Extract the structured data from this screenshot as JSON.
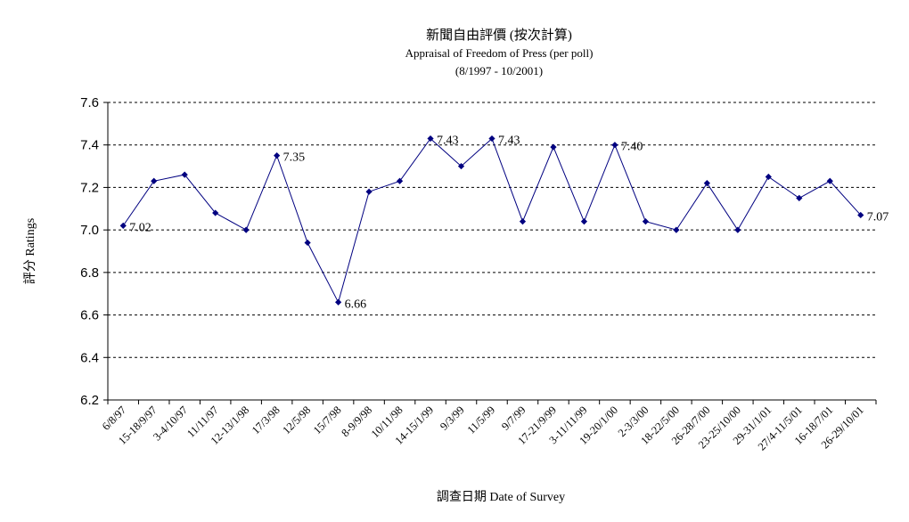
{
  "chart_data": {
    "type": "line",
    "title": "新聞自由評價 (按次計算)",
    "subtitle": "Appraisal of Freedom of Press (per poll)",
    "subtitle2": "(8/1997 - 10/2001)",
    "xlabel": "調查日期 Date of Survey",
    "ylabel": "評分 Ratings",
    "ylim": [
      6.2,
      7.6
    ],
    "yticks": [
      "6.2",
      "6.4",
      "6.6",
      "6.8",
      "7.0",
      "7.2",
      "7.4",
      "7.6"
    ],
    "grid": true,
    "line_color": "#000080",
    "categories": [
      "6/8/97",
      "15-18/9/97",
      "3-4/10/97",
      "11/11/97",
      "12-13/1/98",
      "17/3/98",
      "12/5/98",
      "15/7/98",
      "8-9/9/98",
      "10/11/98",
      "14-15/1/99",
      "9/3/99",
      "11/5/99",
      "9/7/99",
      "17-21/9/99",
      "3-11/11/99",
      "19-20/1/00",
      "2-3/3/00",
      "18-22/5/00",
      "26-28/7/00",
      "23-25/10/00",
      "29-31/1/01",
      "27/4-11/5/01",
      "16-18/7/01",
      "26-29/10/01"
    ],
    "values": [
      7.02,
      7.23,
      7.26,
      7.08,
      7.0,
      7.35,
      6.94,
      6.66,
      7.18,
      7.23,
      7.43,
      7.3,
      7.43,
      7.04,
      7.39,
      7.04,
      7.4,
      7.04,
      7.0,
      7.22,
      7.0,
      7.25,
      7.15,
      7.23,
      7.07
    ],
    "data_labels": [
      {
        "index": 0,
        "text": "7.02"
      },
      {
        "index": 5,
        "text": "7.35"
      },
      {
        "index": 7,
        "text": "6.66"
      },
      {
        "index": 10,
        "text": "7.43"
      },
      {
        "index": 12,
        "text": "7.43"
      },
      {
        "index": 16,
        "text": "7.40"
      },
      {
        "index": 24,
        "text": "7.07"
      }
    ]
  }
}
